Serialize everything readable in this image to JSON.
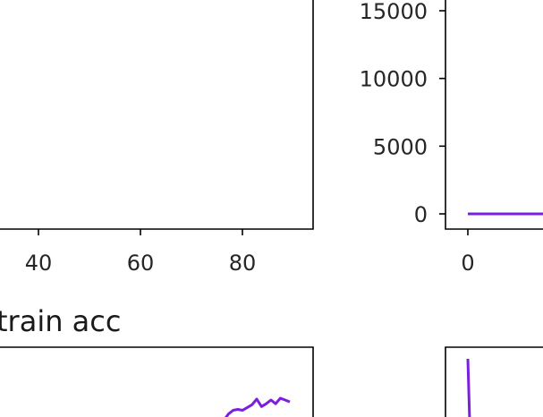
{
  "chart_data": [
    {
      "type": "line",
      "title": "",
      "x_ticks": [
        "40",
        "60",
        "80"
      ],
      "xlim": [
        22,
        95
      ],
      "series": []
    },
    {
      "type": "line",
      "title": "",
      "x_ticks": [
        "0"
      ],
      "y_ticks": [
        "0",
        "5000",
        "10000",
        "15000"
      ],
      "ylim": [
        0,
        15000
      ],
      "series": [
        {
          "color": "#7a1ee0",
          "x": [
            0,
            1,
            2
          ],
          "y": [
            0,
            0,
            0
          ]
        }
      ]
    },
    {
      "type": "line",
      "title": "train acc",
      "series": [
        {
          "color": "#7a1ee0",
          "x": [
            75,
            76,
            77,
            78,
            79,
            80,
            81,
            82,
            83,
            84,
            85,
            86,
            87,
            88,
            89
          ],
          "y": [
            0.55,
            0.62,
            0.66,
            0.67,
            0.66,
            0.69,
            0.72,
            0.78,
            0.7,
            0.73,
            0.77,
            0.73,
            0.79,
            0.77,
            0.75
          ]
        }
      ]
    },
    {
      "type": "line",
      "title": "",
      "series": [
        {
          "color": "#7a1ee0",
          "x": [
            0,
            0.05
          ],
          "y": [
            1.0,
            0.0
          ]
        }
      ]
    }
  ]
}
